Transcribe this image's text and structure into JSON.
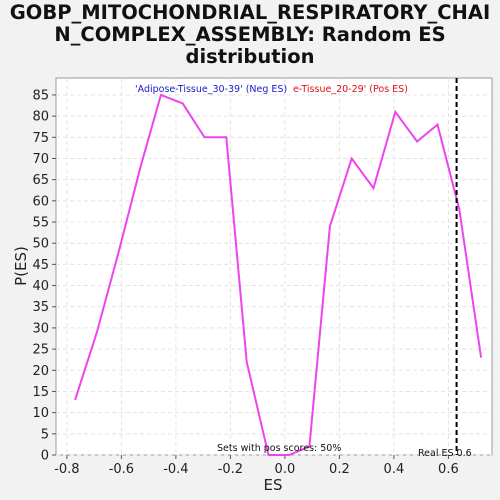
{
  "chart_data": {
    "type": "line",
    "title_lines": [
      "GOBP_MITOCHONDRIAL_RESPIRATORY_CHAI",
      "N_COMPLEX_ASSEMBLY: Random ES",
      "distribution"
    ],
    "xlabel": "ES",
    "ylabel": "P(ES)",
    "xlim": [
      -0.84,
      0.76
    ],
    "ylim": [
      0,
      89
    ],
    "x_ticks": [
      -0.8,
      -0.6,
      -0.4,
      -0.2,
      0.0,
      0.2,
      0.4,
      0.6
    ],
    "x_tick_labels": [
      "-0.8",
      "-0.6",
      "-0.4",
      "-0.2",
      "0.0",
      "0.2",
      "0.4",
      "0.6"
    ],
    "y_ticks": [
      0,
      5,
      10,
      15,
      20,
      25,
      30,
      35,
      40,
      45,
      50,
      55,
      60,
      65,
      70,
      75,
      80,
      85
    ],
    "y_tick_labels": [
      "0",
      "5",
      "10",
      "15",
      "20",
      "25",
      "30",
      "35",
      "40",
      "45",
      "50",
      "55",
      "60",
      "65",
      "70",
      "75",
      "80",
      "85"
    ],
    "grid": true,
    "series": [
      {
        "color": "#ee44ee",
        "points": [
          [
            -0.77,
            13
          ],
          [
            -0.69,
            29
          ],
          [
            -0.61,
            48
          ],
          [
            -0.53,
            68
          ],
          [
            -0.455,
            85
          ],
          [
            -0.375,
            83
          ],
          [
            -0.295,
            75
          ],
          [
            -0.215,
            75
          ],
          [
            -0.14,
            22
          ],
          [
            -0.06,
            0
          ],
          [
            0.015,
            0
          ],
          [
            0.09,
            2
          ],
          [
            0.165,
            54
          ],
          [
            0.245,
            70
          ],
          [
            0.325,
            63
          ],
          [
            0.405,
            81
          ],
          [
            0.485,
            74
          ],
          [
            0.56,
            78
          ],
          [
            0.64,
            58
          ],
          [
            0.72,
            23
          ]
        ]
      }
    ],
    "legend": {
      "neg_label": "'Adipose-Tissue_30-39' (Neg ES)",
      "pos_label": "e-Tissue_20-29' (Pos ES)",
      "neg_color": "#1a1acc",
      "pos_color": "#dd1111"
    },
    "real_es": {
      "value": 0.63,
      "label": "Real ES 0.6"
    },
    "annotation": "Sets with pos scores: 50%"
  }
}
